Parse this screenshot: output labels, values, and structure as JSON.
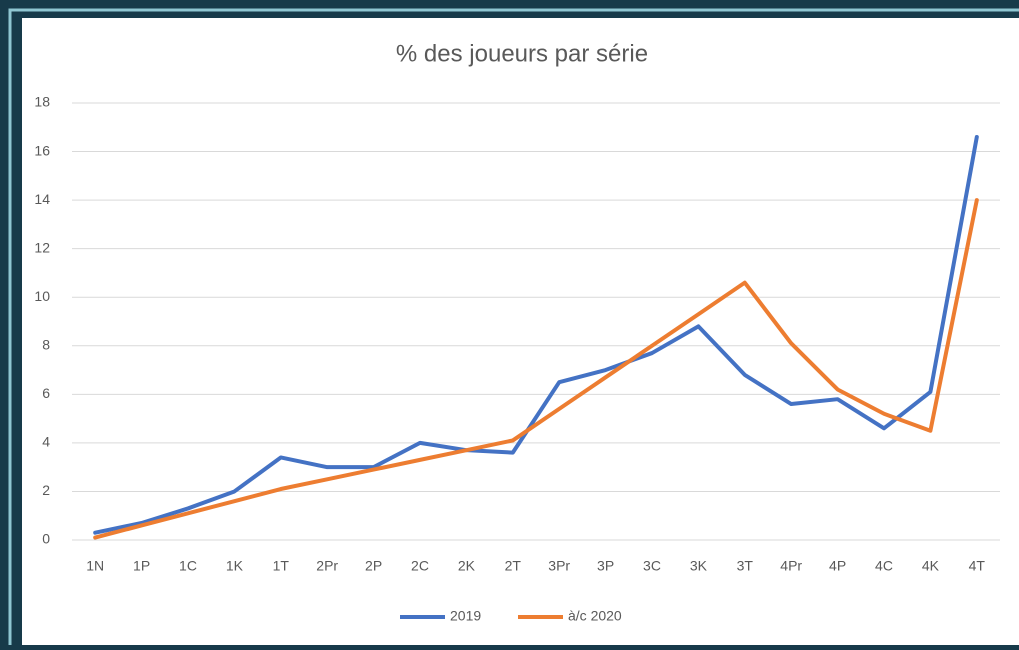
{
  "chart_data": {
    "type": "line",
    "title": "% des joueurs par série",
    "categories": [
      "1N",
      "1P",
      "1C",
      "1K",
      "1T",
      "2Pr",
      "2P",
      "2C",
      "2K",
      "2T",
      "3Pr",
      "3P",
      "3C",
      "3K",
      "3T",
      "4Pr",
      "4P",
      "4C",
      "4K",
      "4T"
    ],
    "series": [
      {
        "name": "2019",
        "color": "#4472c4",
        "values": [
          0.3,
          0.7,
          1.3,
          2.0,
          3.4,
          3.0,
          3.0,
          4.0,
          3.7,
          3.6,
          6.5,
          7.0,
          7.7,
          8.8,
          6.8,
          5.6,
          5.8,
          4.6,
          6.1,
          16.6
        ]
      },
      {
        "name": "à/c 2020",
        "color": "#ed7d31",
        "values": [
          0.1,
          0.6,
          1.1,
          1.6,
          2.1,
          2.5,
          2.9,
          3.3,
          3.7,
          4.1,
          5.4,
          6.7,
          8.0,
          9.3,
          10.6,
          8.1,
          6.2,
          5.2,
          4.5,
          14.0
        ]
      }
    ],
    "ylim": [
      0,
      18
    ],
    "yticks": [
      0,
      2,
      4,
      6,
      8,
      10,
      12,
      14,
      16,
      18
    ],
    "grid": true,
    "legend": "bottom"
  }
}
